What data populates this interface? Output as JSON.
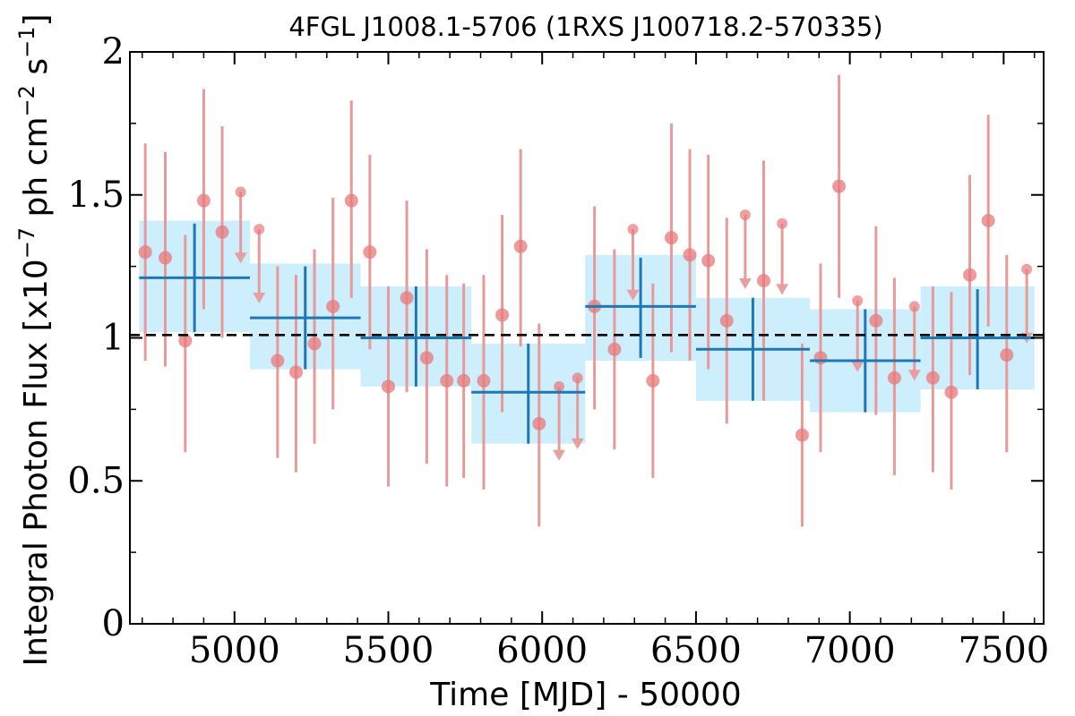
{
  "chart_data": {
    "type": "scatter",
    "title": "4FGL J1008.1-5706 (1RXS J100718.2-570335)",
    "xlabel": "Time [MJD] - 50000",
    "ylabel": "Integral Photon Flux [x10",
    "ylabel_sup1": "−7",
    "ylabel_mid": " ph cm",
    "ylabel_sup2": "−2",
    "ylabel_s": " s",
    "ylabel_sup3": "−1",
    "ylabel_end": "]",
    "xlim": [
      4660,
      7630
    ],
    "ylim": [
      0,
      2
    ],
    "xticks": [
      5000,
      5500,
      6000,
      6500,
      7000,
      7500
    ],
    "yticks": [
      0,
      0.5,
      1,
      1.5,
      2
    ],
    "ytick_labels": [
      "0",
      "0.5",
      "1",
      "1.5",
      "2"
    ],
    "mean_flux": 1.01,
    "colors": {
      "points": "#e8787a",
      "errorbars": "#e89a9a",
      "bins": "#1f77b4",
      "bands": "#cdeefc",
      "mean_line": "#000000"
    },
    "detections": [
      {
        "x": 4710,
        "y": 1.3,
        "yerr": [
          0.92,
          1.68
        ]
      },
      {
        "x": 4775,
        "y": 1.28,
        "yerr": [
          0.9,
          1.65
        ]
      },
      {
        "x": 4840,
        "y": 0.99,
        "yerr": [
          0.6,
          1.36
        ]
      },
      {
        "x": 4900,
        "y": 1.48,
        "yerr": [
          1.1,
          1.87
        ]
      },
      {
        "x": 4960,
        "y": 1.37,
        "yerr": [
          1.0,
          1.74
        ]
      },
      {
        "x": 5140,
        "y": 0.92,
        "yerr": [
          0.58,
          1.25
        ]
      },
      {
        "x": 5200,
        "y": 0.88,
        "yerr": [
          0.53,
          1.22
        ]
      },
      {
        "x": 5260,
        "y": 0.98,
        "yerr": [
          0.63,
          1.31
        ]
      },
      {
        "x": 5320,
        "y": 1.11,
        "yerr": [
          0.75,
          1.49
        ]
      },
      {
        "x": 5380,
        "y": 1.48,
        "yerr": [
          1.14,
          1.83
        ]
      },
      {
        "x": 5440,
        "y": 1.3,
        "yerr": [
          0.96,
          1.64
        ]
      },
      {
        "x": 5500,
        "y": 0.83,
        "yerr": [
          0.48,
          1.18
        ]
      },
      {
        "x": 5560,
        "y": 1.14,
        "yerr": [
          0.81,
          1.48
        ]
      },
      {
        "x": 5625,
        "y": 0.93,
        "yerr": [
          0.56,
          1.31
        ]
      },
      {
        "x": 5690,
        "y": 0.85,
        "yerr": [
          0.48,
          1.22
        ]
      },
      {
        "x": 5745,
        "y": 0.85,
        "yerr": [
          0.51,
          1.19
        ]
      },
      {
        "x": 5810,
        "y": 0.85,
        "yerr": [
          0.47,
          1.22
        ]
      },
      {
        "x": 5870,
        "y": 1.08,
        "yerr": [
          0.74,
          1.43
        ]
      },
      {
        "x": 5930,
        "y": 1.32,
        "yerr": [
          0.97,
          1.66
        ]
      },
      {
        "x": 5990,
        "y": 0.7,
        "yerr": [
          0.34,
          1.05
        ]
      },
      {
        "x": 6170,
        "y": 1.11,
        "yerr": [
          0.75,
          1.46
        ]
      },
      {
        "x": 6235,
        "y": 0.96,
        "yerr": [
          0.61,
          1.31
        ]
      },
      {
        "x": 6360,
        "y": 0.85,
        "yerr": [
          0.51,
          1.19
        ]
      },
      {
        "x": 6420,
        "y": 1.35,
        "yerr": [
          0.95,
          1.75
        ]
      },
      {
        "x": 6480,
        "y": 1.29,
        "yerr": [
          0.92,
          1.66
        ]
      },
      {
        "x": 6540,
        "y": 1.27,
        "yerr": [
          0.89,
          1.64
        ]
      },
      {
        "x": 6600,
        "y": 1.06,
        "yerr": [
          0.7,
          1.42
        ]
      },
      {
        "x": 6720,
        "y": 1.2,
        "yerr": [
          0.78,
          1.62
        ]
      },
      {
        "x": 6845,
        "y": 0.66,
        "yerr": [
          0.34,
          0.98
        ]
      },
      {
        "x": 6905,
        "y": 0.93,
        "yerr": [
          0.6,
          1.26
        ]
      },
      {
        "x": 6965,
        "y": 1.53,
        "yerr": [
          1.14,
          1.92
        ]
      },
      {
        "x": 7085,
        "y": 1.06,
        "yerr": [
          0.73,
          1.39
        ]
      },
      {
        "x": 7145,
        "y": 0.86,
        "yerr": [
          0.52,
          1.21
        ]
      },
      {
        "x": 7270,
        "y": 0.86,
        "yerr": [
          0.53,
          1.18
        ]
      },
      {
        "x": 7330,
        "y": 0.81,
        "yerr": [
          0.47,
          1.16
        ]
      },
      {
        "x": 7390,
        "y": 1.22,
        "yerr": [
          0.87,
          1.57
        ]
      },
      {
        "x": 7450,
        "y": 1.41,
        "yerr": [
          1.04,
          1.78
        ]
      },
      {
        "x": 7510,
        "y": 0.94,
        "yerr": [
          0.6,
          1.29
        ]
      }
    ],
    "upper_limits": [
      {
        "x": 5020,
        "y": 1.51,
        "arrow_to": 1.27
      },
      {
        "x": 5080,
        "y": 1.38,
        "arrow_to": 1.13
      },
      {
        "x": 6055,
        "y": 0.83,
        "arrow_to": 0.58
      },
      {
        "x": 6115,
        "y": 0.86,
        "arrow_to": 0.62
      },
      {
        "x": 6295,
        "y": 1.38,
        "arrow_to": 1.14
      },
      {
        "x": 6660,
        "y": 1.43,
        "arrow_to": 1.18
      },
      {
        "x": 6780,
        "y": 1.4,
        "arrow_to": 1.16
      },
      {
        "x": 7025,
        "y": 1.13,
        "arrow_to": 0.89
      },
      {
        "x": 7210,
        "y": 1.11,
        "arrow_to": 0.86
      },
      {
        "x": 7575,
        "y": 1.24,
        "arrow_to": 0.99
      }
    ],
    "bins": [
      {
        "x0": 4690,
        "x1": 5050,
        "center": 4870,
        "y": 1.21,
        "ylo": 1.02,
        "yhi": 1.4,
        "band": [
          1.02,
          1.41
        ]
      },
      {
        "x0": 5050,
        "x1": 5410,
        "center": 5230,
        "y": 1.07,
        "ylo": 0.89,
        "yhi": 1.25,
        "band": [
          0.89,
          1.26
        ]
      },
      {
        "x0": 5410,
        "x1": 5770,
        "center": 5590,
        "y": 1.0,
        "ylo": 0.83,
        "yhi": 1.18,
        "band": [
          0.83,
          1.18
        ]
      },
      {
        "x0": 5770,
        "x1": 6140,
        "center": 5955,
        "y": 0.81,
        "ylo": 0.63,
        "yhi": 0.98,
        "band": [
          0.63,
          0.98
        ]
      },
      {
        "x0": 6140,
        "x1": 6500,
        "center": 6320,
        "y": 1.11,
        "ylo": 0.93,
        "yhi": 1.28,
        "band": [
          0.92,
          1.29
        ]
      },
      {
        "x0": 6500,
        "x1": 6870,
        "center": 6685,
        "y": 0.96,
        "ylo": 0.78,
        "yhi": 1.14,
        "band": [
          0.78,
          1.14
        ]
      },
      {
        "x0": 6870,
        "x1": 7230,
        "center": 7050,
        "y": 0.92,
        "ylo": 0.74,
        "yhi": 1.1,
        "band": [
          0.74,
          1.1
        ]
      },
      {
        "x0": 7230,
        "x1": 7600,
        "center": 7415,
        "y": 1.0,
        "ylo": 0.82,
        "yhi": 1.17,
        "band": [
          0.82,
          1.18
        ]
      }
    ]
  }
}
